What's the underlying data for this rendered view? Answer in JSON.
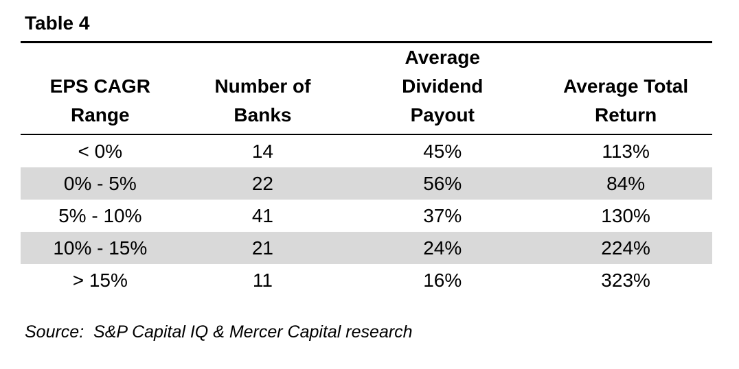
{
  "title": "Table 4",
  "table": {
    "stripe_color": "#d9d9d9",
    "columns": [
      {
        "id": "eps-cagr-range",
        "lines": [
          "EPS CAGR",
          "Range"
        ]
      },
      {
        "id": "number-of-banks",
        "lines": [
          "Number of",
          "Banks"
        ]
      },
      {
        "id": "average-dividend-payout",
        "lines": [
          "Average",
          "Dividend",
          "Payout"
        ]
      },
      {
        "id": "average-total-return",
        "lines": [
          "Average Total",
          "Return"
        ]
      }
    ],
    "rows": [
      {
        "cells": [
          "< 0%",
          "14",
          "45%",
          "113%"
        ]
      },
      {
        "cells": [
          "0% - 5%",
          "22",
          "56%",
          "84%"
        ]
      },
      {
        "cells": [
          "5% - 10%",
          "41",
          "37%",
          "130%"
        ]
      },
      {
        "cells": [
          "10% - 15%",
          "21",
          "24%",
          "224%"
        ]
      },
      {
        "cells": [
          "> 15%",
          "11",
          "16%",
          "323%"
        ]
      }
    ]
  },
  "source_note": "Source:  S&P Capital IQ & Mercer Capital research"
}
